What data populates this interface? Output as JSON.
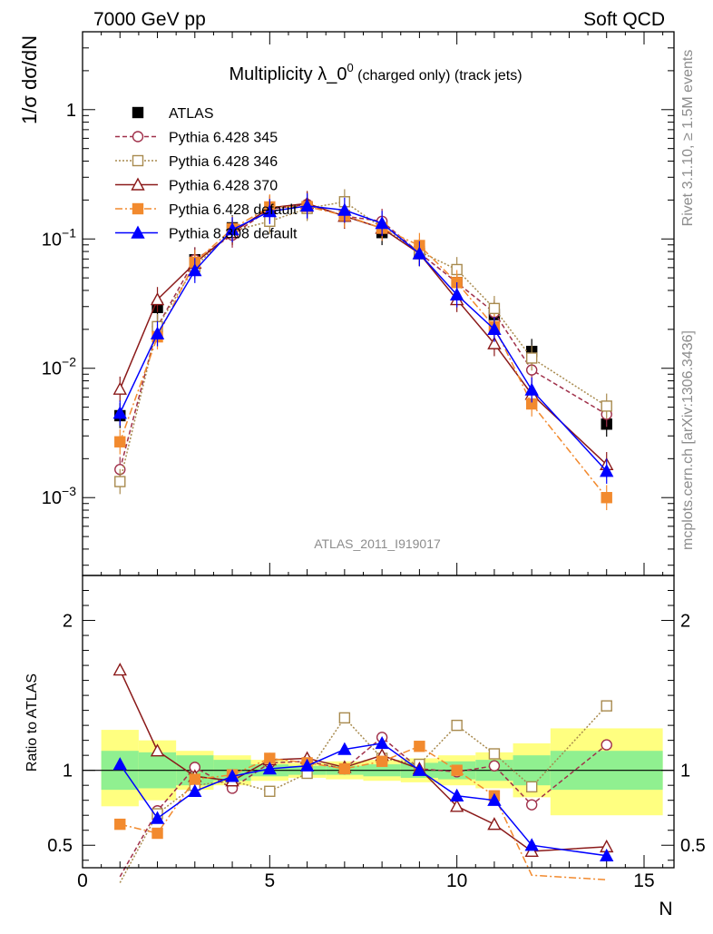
{
  "header": {
    "left": "7000 GeV pp",
    "right": "Soft QCD"
  },
  "side_labels": {
    "rivet": "Rivet 3.1.10, ≥ 1.5M events",
    "mcplots": "mcplots.cern.ch [arXiv:1306.3436]"
  },
  "chart_data": [
    {
      "type": "line",
      "panel": "main",
      "title": "Multiplicity λ_0",
      "title_sup": "0",
      "title_suffix": " (charged only) (track jets)",
      "ylabel": "1/σ dσ/dN",
      "watermark": "ATLAS_2011_I919017",
      "yscale": "log",
      "ylim": [
        0.00025,
        4
      ],
      "xlim": [
        0,
        15.8
      ],
      "y_ticks": [
        {
          "v": 0.001,
          "base": "10",
          "exp": "−3"
        },
        {
          "v": 0.01,
          "base": "10",
          "exp": "−2"
        },
        {
          "v": 0.1,
          "base": "10",
          "exp": "−1"
        },
        {
          "v": 1,
          "base": "1",
          "exp": ""
        }
      ],
      "x": [
        1,
        2,
        3,
        4,
        5,
        6,
        7,
        8,
        9,
        10,
        11,
        12,
        14
      ],
      "series": [
        {
          "name": "ATLAS",
          "color": "#000000",
          "dash": "",
          "marker": "square-filled",
          "values": [
            0.0043,
            0.0295,
            0.069,
            0.122,
            0.162,
            0.176,
            0.15,
            0.112,
            0.077,
            0.046,
            0.026,
            0.0135,
            0.0037
          ]
        },
        {
          "name": "Pythia 6.428 345",
          "color": "#a0304a",
          "dash": "5,3",
          "marker": "circle-open",
          "values": [
            0.00165,
            0.021,
            0.069,
            0.107,
            0.17,
            0.185,
            0.15,
            0.137,
            0.078,
            0.046,
            0.027,
            0.0097,
            0.0044
          ]
        },
        {
          "name": "Pythia 6.428 346",
          "color": "#a88a4e",
          "dash": "2,2",
          "marker": "square-open",
          "values": [
            0.00133,
            0.021,
            0.061,
            0.115,
            0.137,
            0.172,
            0.194,
            0.122,
            0.08,
            0.058,
            0.029,
            0.012,
            0.0051
          ]
        },
        {
          "name": "Pythia 6.428 370",
          "color": "#8b1a1a",
          "dash": "",
          "marker": "triangle-open",
          "values": [
            0.0069,
            0.034,
            0.065,
            0.112,
            0.174,
            0.188,
            0.15,
            0.121,
            0.077,
            0.034,
            0.0155,
            0.0063,
            0.0018
          ]
        },
        {
          "name": "Pythia 6.428 default",
          "color": "#f28a2e",
          "dash": "8,3,2,3",
          "marker": "square-filled",
          "values": [
            0.0027,
            0.0175,
            0.066,
            0.12,
            0.177,
            0.178,
            0.152,
            0.121,
            0.089,
            0.046,
            0.021,
            0.0053,
            0.001
          ]
        },
        {
          "name": "Pythia 8.308 default",
          "color": "#0000ff",
          "dash": "",
          "marker": "triangle-filled",
          "values": [
            0.0045,
            0.0185,
            0.057,
            0.118,
            0.163,
            0.18,
            0.167,
            0.132,
            0.077,
            0.037,
            0.02,
            0.0068,
            0.0016
          ]
        }
      ]
    },
    {
      "type": "line",
      "panel": "ratio",
      "ylabel": "Ratio to ATLAS",
      "xlabel": "N",
      "ylim": [
        0.35,
        2.3
      ],
      "xlim": [
        0,
        15.8
      ],
      "x_ticks": [
        0,
        5,
        10,
        15
      ],
      "y_ticks": [
        0.5,
        1,
        2
      ],
      "bands": {
        "edges": [
          0.5,
          1.5,
          2.5,
          3.5,
          4.5,
          5.5,
          6.5,
          7.5,
          8.5,
          9.5,
          10.5,
          11.5,
          12.5,
          15.5
        ],
        "inner_lo": [
          0.87,
          0.88,
          0.9,
          0.93,
          0.96,
          0.97,
          0.97,
          0.96,
          0.95,
          0.94,
          0.93,
          0.9,
          0.87
        ],
        "inner_hi": [
          1.13,
          1.12,
          1.1,
          1.07,
          1.04,
          1.03,
          1.03,
          1.04,
          1.05,
          1.06,
          1.07,
          1.1,
          1.13
        ],
        "outer_lo": [
          0.76,
          0.8,
          0.87,
          0.9,
          0.93,
          0.95,
          0.94,
          0.93,
          0.92,
          0.9,
          0.88,
          0.82,
          0.7
        ],
        "outer_hi": [
          1.27,
          1.2,
          1.13,
          1.1,
          1.07,
          1.05,
          1.06,
          1.07,
          1.08,
          1.1,
          1.12,
          1.18,
          1.28
        ]
      },
      "x": [
        1,
        2,
        3,
        4,
        5,
        6,
        7,
        8,
        9,
        10,
        11,
        12,
        14
      ],
      "series": [
        {
          "name": "Pythia 6.428 345",
          "values": [
            0.29,
            0.73,
            1.02,
            0.88,
            1.05,
            1.06,
            1.01,
            1.22,
            1.01,
            0.99,
            1.03,
            0.77,
            1.17
          ]
        },
        {
          "name": "Pythia 6.428 346",
          "values": [
            0.25,
            0.71,
            0.9,
            0.93,
            0.86,
            0.98,
            1.35,
            1.08,
            1.04,
            1.3,
            1.11,
            0.89,
            1.43
          ]
        },
        {
          "name": "Pythia 6.428 370",
          "values": [
            1.67,
            1.13,
            0.96,
            0.93,
            1.07,
            1.08,
            1.02,
            1.1,
            1.01,
            0.76,
            0.64,
            0.46,
            0.49
          ]
        },
        {
          "name": "Pythia 6.428 default",
          "values": [
            0.64,
            0.58,
            0.94,
            0.97,
            1.08,
            1.05,
            1.01,
            1.06,
            1.16,
            1.0,
            0.83,
            0.3,
            0.27
          ]
        },
        {
          "name": "Pythia 8.308 default",
          "values": [
            1.04,
            0.68,
            0.86,
            0.96,
            1.01,
            1.03,
            1.14,
            1.18,
            1.0,
            0.83,
            0.8,
            0.5,
            0.43
          ]
        }
      ]
    }
  ]
}
